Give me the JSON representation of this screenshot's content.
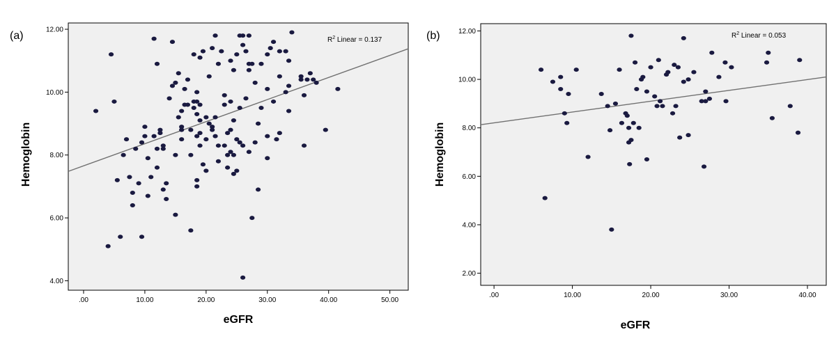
{
  "chart_data": [
    {
      "type": "scatter",
      "panel_label": "(a)",
      "xlabel": "eGFR",
      "ylabel": "Hemoglobin",
      "xlim": [
        -2.5,
        53
      ],
      "ylim": [
        3.7,
        12.2
      ],
      "xticks": [
        ".00",
        "10.00",
        "20.00",
        "30.00",
        "40.00",
        "50.00"
      ],
      "xtick_values": [
        0,
        10,
        20,
        30,
        40,
        50
      ],
      "yticks": [
        "4.00",
        "6.00",
        "8.00",
        "10.00",
        "12.00"
      ],
      "ytick_values": [
        4,
        6,
        8,
        10,
        12
      ],
      "grid": false,
      "annotation": {
        "prefix": "R",
        "sup": "2",
        "text": " Linear = 0.137"
      },
      "fit_line": {
        "x": [
          -2.5,
          53
        ],
        "y": [
          7.48,
          11.38
        ]
      },
      "point_color": "#1a1a40",
      "points": [
        [
          2,
          9.4
        ],
        [
          4,
          5.1
        ],
        [
          4.5,
          11.2
        ],
        [
          5,
          9.7
        ],
        [
          5.5,
          7.2
        ],
        [
          6,
          5.4
        ],
        [
          6.5,
          8.0
        ],
        [
          7,
          8.5
        ],
        [
          7.5,
          7.3
        ],
        [
          8,
          6.4
        ],
        [
          8,
          6.8
        ],
        [
          8.5,
          8.2
        ],
        [
          9,
          7.1
        ],
        [
          9.5,
          8.4
        ],
        [
          9.5,
          5.4
        ],
        [
          10,
          8.6
        ],
        [
          10,
          8.9
        ],
        [
          10.5,
          6.7
        ],
        [
          10.5,
          7.9
        ],
        [
          11,
          7.3
        ],
        [
          11.5,
          11.7
        ],
        [
          11.5,
          8.6
        ],
        [
          12,
          10.9
        ],
        [
          12,
          7.6
        ],
        [
          12,
          8.2
        ],
        [
          12.5,
          8.8
        ],
        [
          12.5,
          8.7
        ],
        [
          13,
          6.9
        ],
        [
          13,
          8.3
        ],
        [
          13,
          8.2
        ],
        [
          13.5,
          7.1
        ],
        [
          13.5,
          6.6
        ],
        [
          14,
          9.8
        ],
        [
          14.5,
          11.6
        ],
        [
          14.5,
          10.2
        ],
        [
          15,
          10.3
        ],
        [
          15,
          8.0
        ],
        [
          15,
          6.1
        ],
        [
          15.5,
          9.2
        ],
        [
          15.5,
          10.6
        ],
        [
          16,
          8.5
        ],
        [
          16,
          8.9
        ],
        [
          16,
          9.4
        ],
        [
          16,
          8.8
        ],
        [
          16.5,
          9.6
        ],
        [
          16.5,
          10.1
        ],
        [
          17,
          9.6
        ],
        [
          17,
          10.4
        ],
        [
          17.5,
          5.6
        ],
        [
          17.5,
          8.0
        ],
        [
          17.5,
          8.8
        ],
        [
          18,
          9.5
        ],
        [
          18,
          11.2
        ],
        [
          18,
          9.7
        ],
        [
          18.5,
          8.6
        ],
        [
          18.5,
          9.3
        ],
        [
          18.5,
          9.7
        ],
        [
          18.5,
          10.0
        ],
        [
          18.5,
          7.0
        ],
        [
          18.5,
          7.2
        ],
        [
          19,
          11.1
        ],
        [
          19,
          9.6
        ],
        [
          19,
          8.7
        ],
        [
          19,
          8.3
        ],
        [
          19,
          9.1
        ],
        [
          19.5,
          11.3
        ],
        [
          19.5,
          7.7
        ],
        [
          20,
          7.5
        ],
        [
          20,
          8.5
        ],
        [
          20,
          9.2
        ],
        [
          20.5,
          9.0
        ],
        [
          20.5,
          10.5
        ],
        [
          21,
          11.4
        ],
        [
          21,
          8.9
        ],
        [
          21,
          8.8
        ],
        [
          21.5,
          11.8
        ],
        [
          21.5,
          9.2
        ],
        [
          21.5,
          8.6
        ],
        [
          22,
          10.9
        ],
        [
          22,
          8.3
        ],
        [
          22,
          7.8
        ],
        [
          22.5,
          11.3
        ],
        [
          23,
          9.6
        ],
        [
          23,
          9.9
        ],
        [
          23,
          8.3
        ],
        [
          23.5,
          8.7
        ],
        [
          23.5,
          8.0
        ],
        [
          23.5,
          7.6
        ],
        [
          24,
          11.0
        ],
        [
          24,
          9.7
        ],
        [
          24,
          8.8
        ],
        [
          24,
          8.1
        ],
        [
          24.5,
          10.7
        ],
        [
          24.5,
          9.1
        ],
        [
          24.5,
          8.0
        ],
        [
          24.5,
          7.4
        ],
        [
          25,
          11.2
        ],
        [
          25,
          8.5
        ],
        [
          25,
          7.5
        ],
        [
          25.5,
          11.8
        ],
        [
          25.5,
          8.4
        ],
        [
          25.5,
          9.5
        ],
        [
          26,
          11.8
        ],
        [
          26,
          11.5
        ],
        [
          26,
          8.3
        ],
        [
          26,
          4.1
        ],
        [
          26.5,
          11.3
        ],
        [
          26.5,
          9.8
        ],
        [
          27,
          11.8
        ],
        [
          27,
          10.9
        ],
        [
          27,
          10.7
        ],
        [
          27,
          8.1
        ],
        [
          27.5,
          10.9
        ],
        [
          27.5,
          6.0
        ],
        [
          28,
          8.4
        ],
        [
          28,
          10.3
        ],
        [
          28.5,
          6.9
        ],
        [
          28.5,
          9.0
        ],
        [
          29,
          10.9
        ],
        [
          29,
          9.5
        ],
        [
          30,
          11.2
        ],
        [
          30,
          10.1
        ],
        [
          30,
          8.6
        ],
        [
          30,
          7.9
        ],
        [
          30.5,
          11.4
        ],
        [
          31,
          11.6
        ],
        [
          31,
          9.7
        ],
        [
          31.5,
          8.5
        ],
        [
          32,
          11.3
        ],
        [
          32,
          10.5
        ],
        [
          32,
          8.7
        ],
        [
          33,
          10.0
        ],
        [
          33,
          11.3
        ],
        [
          33.5,
          10.2
        ],
        [
          33.5,
          9.4
        ],
        [
          33.5,
          11.0
        ],
        [
          34,
          11.9
        ],
        [
          35.5,
          10.5
        ],
        [
          35.5,
          10.4
        ],
        [
          36,
          9.9
        ],
        [
          36,
          8.3
        ],
        [
          36.5,
          10.4
        ],
        [
          37,
          10.6
        ],
        [
          37.5,
          10.4
        ],
        [
          38,
          10.3
        ],
        [
          39.5,
          8.8
        ],
        [
          41.5,
          10.1
        ]
      ]
    },
    {
      "type": "scatter",
      "panel_label": "(b)",
      "xlabel": "eGFR",
      "ylabel": "Hemoglobin",
      "xlim": [
        -1.7,
        42.4
      ],
      "ylim": [
        1.5,
        12.3
      ],
      "xticks": [
        ".00",
        "10.00",
        "20.00",
        "30.00",
        "40.00"
      ],
      "xtick_values": [
        0,
        10,
        20,
        30,
        40
      ],
      "yticks": [
        "2.00",
        "4.00",
        "6.00",
        "8.00",
        "10.00",
        "12.00"
      ],
      "ytick_values": [
        2,
        4,
        6,
        8,
        10,
        12
      ],
      "grid": false,
      "annotation": {
        "prefix": "R",
        "sup": "2",
        "text": " Linear = 0.053"
      },
      "fit_line": {
        "x": [
          -1.7,
          42.4
        ],
        "y": [
          8.13,
          10.1
        ]
      },
      "point_color": "#1a1a40",
      "points": [
        [
          6,
          10.4
        ],
        [
          6.5,
          5.1
        ],
        [
          7.5,
          9.9
        ],
        [
          8.5,
          10.1
        ],
        [
          8.5,
          9.6
        ],
        [
          9,
          8.6
        ],
        [
          9.3,
          8.2
        ],
        [
          9.5,
          9.4
        ],
        [
          10.5,
          10.4
        ],
        [
          12,
          6.8
        ],
        [
          13.7,
          9.4
        ],
        [
          14.5,
          8.9
        ],
        [
          14.8,
          7.9
        ],
        [
          15,
          3.8
        ],
        [
          15.5,
          9.0
        ],
        [
          16,
          10.4
        ],
        [
          16.3,
          8.2
        ],
        [
          16.8,
          8.6
        ],
        [
          17,
          8.5
        ],
        [
          17.2,
          8.0
        ],
        [
          17.2,
          7.4
        ],
        [
          17.3,
          6.5
        ],
        [
          17.5,
          11.8
        ],
        [
          17.5,
          7.5
        ],
        [
          17.8,
          8.2
        ],
        [
          18,
          10.7
        ],
        [
          18.2,
          9.6
        ],
        [
          18.5,
          8.0
        ],
        [
          18.8,
          10.0
        ],
        [
          19,
          10.1
        ],
        [
          19.5,
          9.5
        ],
        [
          19.5,
          6.7
        ],
        [
          20,
          10.5
        ],
        [
          20.5,
          9.3
        ],
        [
          20.8,
          8.9
        ],
        [
          21,
          10.8
        ],
        [
          21.2,
          9.1
        ],
        [
          21.5,
          8.9
        ],
        [
          22,
          10.2
        ],
        [
          22.2,
          10.3
        ],
        [
          22.8,
          8.6
        ],
        [
          23,
          10.6
        ],
        [
          23.2,
          8.9
        ],
        [
          23.5,
          10.5
        ],
        [
          23.7,
          7.6
        ],
        [
          24.2,
          11.7
        ],
        [
          24.2,
          9.9
        ],
        [
          24.8,
          7.7
        ],
        [
          24.8,
          10.0
        ],
        [
          25.5,
          10.3
        ],
        [
          26.5,
          9.1
        ],
        [
          26.8,
          6.4
        ],
        [
          27,
          9.5
        ],
        [
          27,
          9.1
        ],
        [
          27.5,
          9.2
        ],
        [
          27.8,
          11.1
        ],
        [
          28.7,
          10.1
        ],
        [
          29.5,
          10.7
        ],
        [
          29.6,
          9.1
        ],
        [
          30.3,
          10.5
        ],
        [
          34.8,
          10.7
        ],
        [
          35,
          11.1
        ],
        [
          35.5,
          8.4
        ],
        [
          37.8,
          8.9
        ],
        [
          38.8,
          7.8
        ],
        [
          39,
          10.8
        ]
      ]
    }
  ]
}
